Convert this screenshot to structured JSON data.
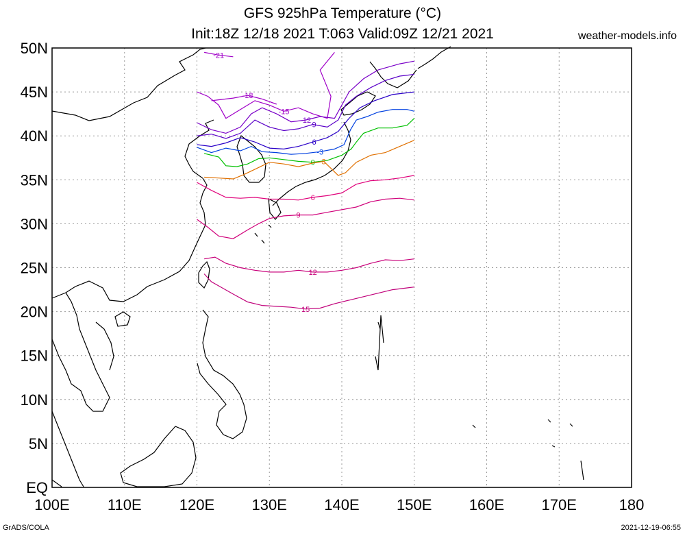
{
  "title_line1": "GFS 925hPa Temperature (°C)",
  "title_line2": "Init:18Z 12/18 2021 T:063 Valid:09Z 12/21 2021",
  "site": "weather-models.info",
  "footer_left": "GrADS/COLA",
  "footer_right": "2021-12-19-06:55",
  "map": {
    "lon_range": [
      100,
      180
    ],
    "lat_range": [
      0,
      50
    ],
    "x_ticks": [
      "100E",
      "110E",
      "120E",
      "130E",
      "140E",
      "150E",
      "160E",
      "170E",
      "180"
    ],
    "y_ticks": [
      "EQ",
      "5N",
      "10N",
      "15N",
      "20N",
      "25N",
      "30N",
      "35N",
      "40N",
      "45N",
      "50N"
    ],
    "gridlines": true,
    "contour_domain": {
      "lon": [
        120,
        150
      ],
      "lat": [
        20,
        50
      ]
    },
    "contours": [
      {
        "value": "-21",
        "color": "#a000c8"
      },
      {
        "value": "-18",
        "color": "#a000c8"
      },
      {
        "value": "-15",
        "color": "#a000c8"
      },
      {
        "value": "-12",
        "color": "#7a00c8"
      },
      {
        "value": "-9",
        "color": "#5a00c8"
      },
      {
        "value": "-6",
        "color": "#2a00c8"
      },
      {
        "value": "-3",
        "color": "#0040e0"
      },
      {
        "value": "0",
        "color": "#00c000"
      },
      {
        "value": "3",
        "color": "#e07000"
      },
      {
        "value": "6",
        "color": "#e0007a"
      },
      {
        "value": "9",
        "color": "#d0007a"
      },
      {
        "value": "12",
        "color": "#c8007a"
      },
      {
        "value": "15",
        "color": "#c0007a"
      }
    ]
  }
}
